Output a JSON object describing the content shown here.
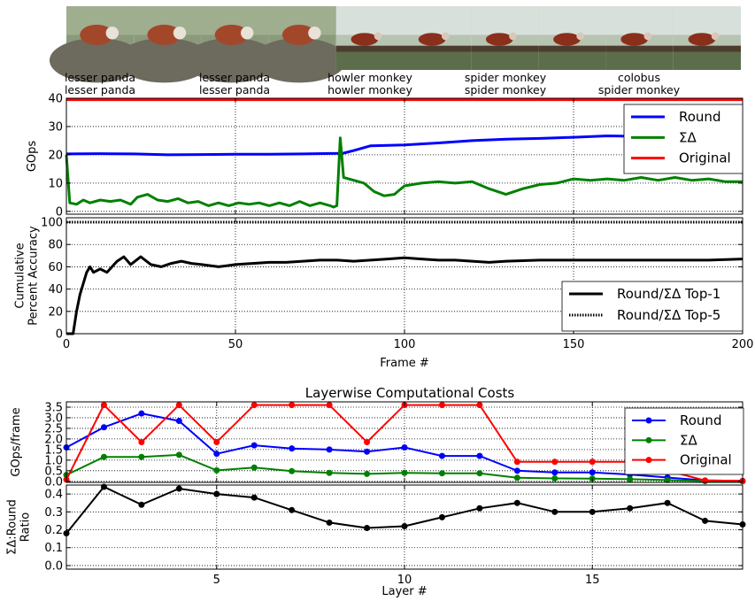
{
  "frames": {
    "thumbnails": [
      "lesser-panda",
      "lesser-panda",
      "lesser-panda",
      "lesser-panda",
      "red-panda-walking",
      "red-panda-walking",
      "red-panda-walking",
      "red-panda-walking",
      "red-panda-walking",
      "red-panda-walking"
    ],
    "label_pairs": [
      {
        "top": "lesser panda",
        "bottom": "lesser panda"
      },
      {
        "top": "lesser panda",
        "bottom": "lesser panda"
      },
      {
        "top": "howler monkey",
        "bottom": "howler monkey"
      },
      {
        "top": "spider monkey",
        "bottom": "spider monkey"
      },
      {
        "top": "colobus",
        "bottom": "spider monkey"
      }
    ]
  },
  "colors": {
    "round": "#0000ff",
    "sigma": "#008000",
    "original": "#ff0000",
    "accuracy": "#000000"
  },
  "chart_data": [
    {
      "type": "line",
      "title": "",
      "xlabel": "",
      "ylabel": "GOps",
      "xlim": [
        0,
        200
      ],
      "ylim": [
        -1,
        40
      ],
      "yticks": [
        0,
        10,
        20,
        30,
        40
      ],
      "grid": true,
      "legend": "top-right",
      "series": [
        {
          "name": "Round",
          "key": "round",
          "points": [
            [
              0,
              20.3
            ],
            [
              10,
              20.4
            ],
            [
              20,
              20.3
            ],
            [
              30,
              20.0
            ],
            [
              40,
              20.1
            ],
            [
              50,
              20.2
            ],
            [
              60,
              20.2
            ],
            [
              70,
              20.3
            ],
            [
              80,
              20.5
            ],
            [
              82,
              20.6
            ],
            [
              85,
              21.5
            ],
            [
              90,
              23.2
            ],
            [
              100,
              23.5
            ],
            [
              110,
              24.2
            ],
            [
              120,
              25.0
            ],
            [
              130,
              25.5
            ],
            [
              140,
              25.8
            ],
            [
              150,
              26.2
            ],
            [
              160,
              26.7
            ],
            [
              170,
              26.5
            ],
            [
              180,
              26.7
            ],
            [
              190,
              26.4
            ],
            [
              200,
              26.6
            ]
          ]
        },
        {
          "name": "ΣΔ",
          "key": "sigma",
          "points": [
            [
              0,
              20
            ],
            [
              1,
              3
            ],
            [
              3,
              2.5
            ],
            [
              5,
              4
            ],
            [
              7,
              3
            ],
            [
              10,
              4
            ],
            [
              13,
              3.5
            ],
            [
              16,
              4
            ],
            [
              19,
              2.5
            ],
            [
              21,
              5
            ],
            [
              24,
              6
            ],
            [
              27,
              4
            ],
            [
              30,
              3.5
            ],
            [
              33,
              4.5
            ],
            [
              36,
              3
            ],
            [
              39,
              3.5
            ],
            [
              42,
              2
            ],
            [
              45,
              3
            ],
            [
              48,
              2
            ],
            [
              51,
              3
            ],
            [
              54,
              2.5
            ],
            [
              57,
              3
            ],
            [
              60,
              2
            ],
            [
              63,
              3
            ],
            [
              66,
              2
            ],
            [
              69,
              3.5
            ],
            [
              72,
              2
            ],
            [
              75,
              3
            ],
            [
              78,
              2
            ],
            [
              79,
              1.5
            ],
            [
              80,
              2
            ],
            [
              81,
              26
            ],
            [
              82,
              12
            ],
            [
              85,
              11
            ],
            [
              88,
              10
            ],
            [
              91,
              7
            ],
            [
              94,
              5.5
            ],
            [
              97,
              6
            ],
            [
              100,
              9
            ],
            [
              105,
              10
            ],
            [
              110,
              10.5
            ],
            [
              115,
              10
            ],
            [
              120,
              10.5
            ],
            [
              125,
              8
            ],
            [
              130,
              6
            ],
            [
              135,
              8
            ],
            [
              140,
              9.5
            ],
            [
              145,
              10
            ],
            [
              150,
              11.5
            ],
            [
              155,
              11
            ],
            [
              160,
              11.5
            ],
            [
              165,
              11
            ],
            [
              170,
              12
            ],
            [
              175,
              11
            ],
            [
              180,
              12
            ],
            [
              185,
              11
            ],
            [
              190,
              11.5
            ],
            [
              195,
              10.5
            ],
            [
              200,
              10.5
            ]
          ]
        },
        {
          "name": "Original",
          "key": "original",
          "points": [
            [
              0,
              39.5
            ],
            [
              200,
              39.5
            ]
          ]
        }
      ]
    },
    {
      "type": "line",
      "title": "",
      "xlabel": "Frame #",
      "ylabel": "Cumulative Percent Accuracy",
      "xlim": [
        0,
        200
      ],
      "ylim": [
        0,
        104
      ],
      "xticks": [
        0,
        50,
        100,
        150,
        200
      ],
      "yticks": [
        0,
        20,
        40,
        60,
        80,
        100
      ],
      "grid": true,
      "legend": "bottom-right",
      "series": [
        {
          "name": "Round/ΣΔ Top-1",
          "key": "top1",
          "points": [
            [
              0,
              0
            ],
            [
              2,
              0
            ],
            [
              3,
              20
            ],
            [
              4,
              35
            ],
            [
              5,
              45
            ],
            [
              6,
              55
            ],
            [
              7,
              60
            ],
            [
              8,
              55
            ],
            [
              10,
              58
            ],
            [
              12,
              55
            ],
            [
              15,
              65
            ],
            [
              17,
              69
            ],
            [
              19,
              62
            ],
            [
              22,
              69
            ],
            [
              25,
              62
            ],
            [
              28,
              60
            ],
            [
              31,
              63
            ],
            [
              34,
              65
            ],
            [
              37,
              63
            ],
            [
              40,
              62
            ],
            [
              45,
              60
            ],
            [
              50,
              62
            ],
            [
              55,
              63
            ],
            [
              60,
              64
            ],
            [
              65,
              64
            ],
            [
              70,
              65
            ],
            [
              75,
              66
            ],
            [
              80,
              66
            ],
            [
              85,
              65
            ],
            [
              90,
              66
            ],
            [
              95,
              67
            ],
            [
              100,
              68
            ],
            [
              105,
              67
            ],
            [
              110,
              66
            ],
            [
              115,
              66
            ],
            [
              120,
              65
            ],
            [
              125,
              64
            ],
            [
              130,
              65
            ],
            [
              140,
              66
            ],
            [
              150,
              66
            ],
            [
              160,
              66
            ],
            [
              170,
              66
            ],
            [
              180,
              66
            ],
            [
              190,
              66
            ],
            [
              200,
              67
            ]
          ]
        },
        {
          "name": "Round/ΣΔ Top-5",
          "key": "top5",
          "points": [
            [
              0,
              100
            ],
            [
              200,
              100
            ]
          ]
        }
      ]
    },
    {
      "type": "line",
      "title": "Layerwise Computational Costs",
      "xlabel": "",
      "ylabel": "GOps/frame",
      "xlim": [
        1,
        19
      ],
      "ylim": [
        -0.05,
        3.75
      ],
      "yticks": [
        0.0,
        0.5,
        1.0,
        1.5,
        2.0,
        2.5,
        3.0,
        3.5
      ],
      "grid": true,
      "legend": "top-right",
      "x": [
        1,
        2,
        3,
        4,
        5,
        6,
        7,
        8,
        9,
        10,
        11,
        12,
        13,
        14,
        15,
        16,
        17,
        18,
        19
      ],
      "series": [
        {
          "name": "Round",
          "key": "round",
          "values": [
            1.6,
            2.55,
            3.2,
            2.85,
            1.3,
            1.7,
            1.55,
            1.5,
            1.4,
            1.6,
            1.2,
            1.2,
            0.5,
            0.42,
            0.42,
            0.32,
            0.18,
            0.04,
            0.02
          ]
        },
        {
          "name": "ΣΔ",
          "key": "sigma",
          "values": [
            0.3,
            1.15,
            1.15,
            1.25,
            0.52,
            0.65,
            0.48,
            0.4,
            0.35,
            0.4,
            0.38,
            0.38,
            0.17,
            0.14,
            0.13,
            0.1,
            0.06,
            0.01,
            0.0
          ]
        },
        {
          "name": "Original",
          "key": "original",
          "values": [
            0.08,
            3.6,
            1.85,
            3.6,
            1.85,
            3.6,
            3.6,
            3.6,
            1.85,
            3.6,
            3.6,
            3.6,
            0.92,
            0.92,
            0.92,
            0.92,
            0.5,
            0.04,
            0.02
          ]
        }
      ]
    },
    {
      "type": "line",
      "title": "",
      "xlabel": "Layer #",
      "ylabel": "ΣΔ:Round Ratio",
      "xlim": [
        1,
        19
      ],
      "ylim": [
        -0.02,
        0.45
      ],
      "xticks": [
        5,
        10,
        15
      ],
      "yticks": [
        0.0,
        0.1,
        0.2,
        0.3,
        0.4
      ],
      "grid": true,
      "x": [
        1,
        2,
        3,
        4,
        5,
        6,
        7,
        8,
        9,
        10,
        11,
        12,
        13,
        14,
        15,
        16,
        17,
        18,
        19
      ],
      "series": [
        {
          "name": "",
          "key": "ratio",
          "values": [
            0.18,
            0.44,
            0.34,
            0.43,
            0.4,
            0.38,
            0.31,
            0.24,
            0.21,
            0.22,
            0.27,
            0.32,
            0.35,
            0.3,
            0.3,
            0.32,
            0.35,
            0.25,
            0.23
          ]
        }
      ]
    }
  ]
}
